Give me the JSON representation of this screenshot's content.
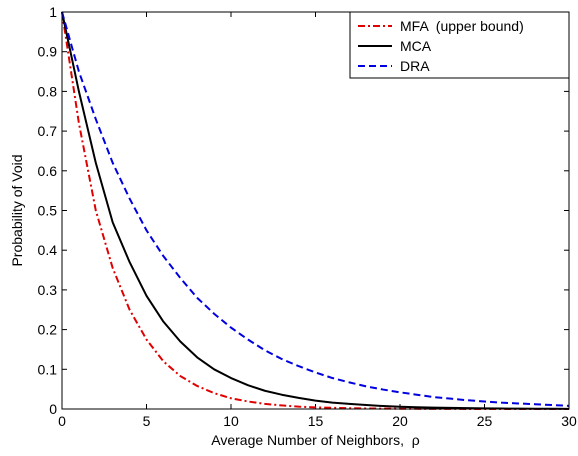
{
  "chart_data": {
    "type": "line",
    "title": "",
    "xlabel": "Average Number of Neighbors,  ρ",
    "ylabel": "Probability of Void",
    "xlim": [
      0,
      30
    ],
    "ylim": [
      0,
      1
    ],
    "xticks": [
      0,
      5,
      10,
      15,
      20,
      25,
      30
    ],
    "yticks": [
      0,
      0.1,
      0.2,
      0.3,
      0.4,
      0.5,
      0.6,
      0.7,
      0.8,
      0.9,
      1
    ],
    "grid": false,
    "legend_position": "top-right",
    "x": [
      0,
      1,
      2,
      3,
      4,
      5,
      6,
      7,
      8,
      9,
      10,
      11,
      12,
      13,
      14,
      15,
      16,
      17,
      18,
      19,
      20,
      21,
      22,
      23,
      24,
      25,
      26,
      27,
      28,
      29,
      30
    ],
    "series": [
      {
        "name": "MFA  (upper bound)",
        "color": "#e00000",
        "dash": "dashdot",
        "values": [
          1,
          0.72,
          0.5,
          0.355,
          0.25,
          0.175,
          0.12,
          0.083,
          0.058,
          0.04,
          0.027,
          0.019,
          0.013,
          0.009,
          0.006,
          0.004,
          0.003,
          0.002,
          0.0014,
          0.001,
          0.0007,
          0.0005,
          0.0003,
          0.0002,
          0.00015,
          0.0001,
          7e-05,
          5e-05,
          3e-05,
          2e-05,
          1e-05
        ]
      },
      {
        "name": "MCA",
        "color": "#000000",
        "dash": "solid",
        "values": [
          1,
          0.8,
          0.62,
          0.47,
          0.37,
          0.285,
          0.22,
          0.17,
          0.13,
          0.1,
          0.078,
          0.06,
          0.046,
          0.036,
          0.028,
          0.021,
          0.016,
          0.013,
          0.01,
          0.0075,
          0.0058,
          0.0045,
          0.0035,
          0.0027,
          0.0021,
          0.0016,
          0.0012,
          0.0009,
          0.0007,
          0.0005,
          0.0004
        ]
      },
      {
        "name": "DRA",
        "color": "#0000e0",
        "dash": "dashed",
        "values": [
          1,
          0.85,
          0.73,
          0.62,
          0.53,
          0.45,
          0.385,
          0.33,
          0.28,
          0.24,
          0.205,
          0.175,
          0.148,
          0.126,
          0.108,
          0.092,
          0.078,
          0.067,
          0.057,
          0.049,
          0.042,
          0.036,
          0.03,
          0.026,
          0.022,
          0.019,
          0.016,
          0.014,
          0.012,
          0.01,
          0.008
        ]
      }
    ]
  }
}
